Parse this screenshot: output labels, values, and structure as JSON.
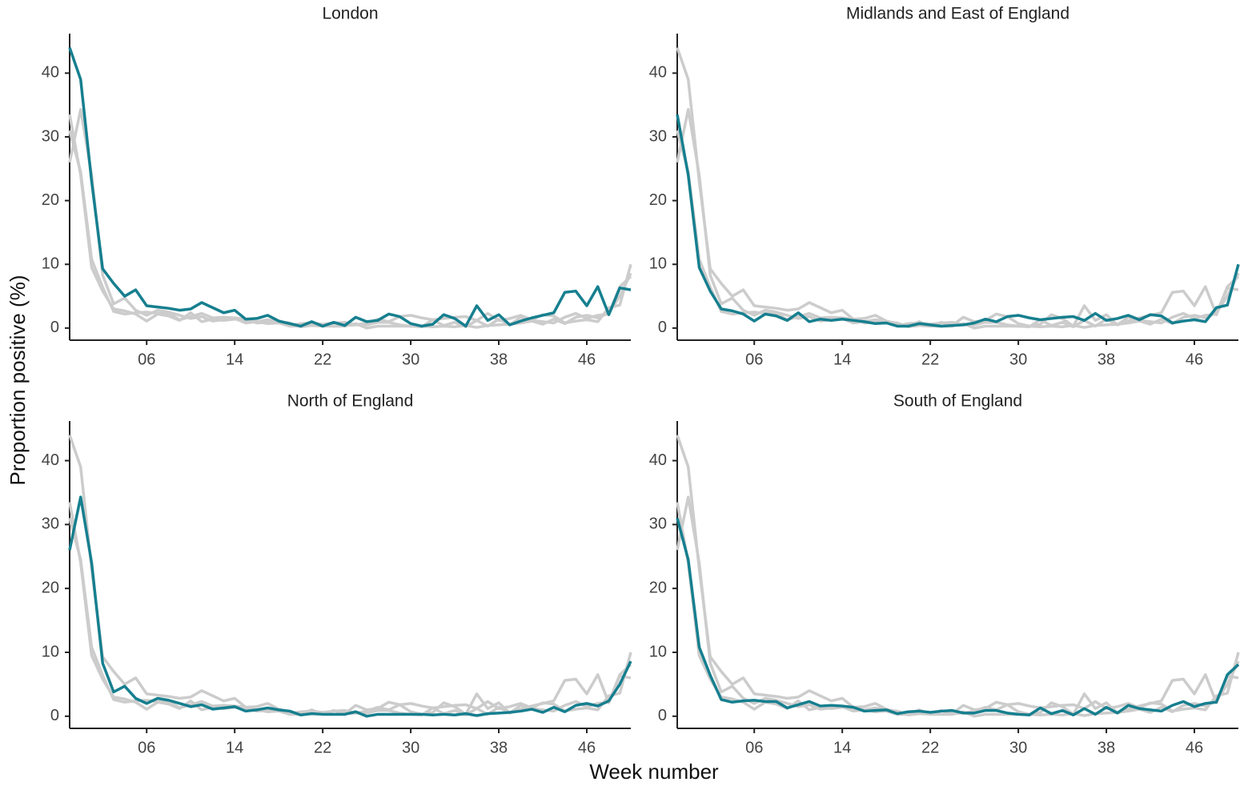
{
  "chart_data": {
    "type": "line",
    "x_label": "Week number",
    "y_label": "Proportion positive (%)",
    "categories": [
      null,
      null,
      null,
      null,
      null,
      null,
      null,
      "06",
      null,
      null,
      null,
      null,
      null,
      null,
      null,
      "14",
      null,
      null,
      null,
      null,
      null,
      null,
      null,
      "22",
      null,
      null,
      null,
      null,
      null,
      null,
      null,
      "30",
      null,
      null,
      null,
      null,
      null,
      null,
      null,
      "38",
      null,
      null,
      null,
      null,
      null,
      null,
      null,
      "46",
      null,
      null,
      null,
      null
    ],
    "ylim": [
      -1.9,
      46.2
    ],
    "yticks": [
      0,
      10,
      20,
      30,
      40
    ],
    "highlight_color": "#167f8f",
    "background_color": "#cccccc",
    "series": [
      {
        "name": "London",
        "values": [
          44,
          39,
          23,
          9.3,
          7,
          5,
          6,
          3.5,
          3.3,
          3.1,
          2.8,
          3,
          4,
          3.2,
          2.4,
          2.8,
          1.4,
          1.5,
          2,
          1.1,
          0.7,
          0.3,
          1,
          0.3,
          0.9,
          0.4,
          1.7,
          1,
          1.2,
          2.2,
          1.8,
          0.7,
          0.3,
          0.6,
          2.1,
          1.5,
          0.3,
          3.5,
          1.2,
          2.1,
          0.5,
          1.1,
          1.6,
          2,
          2.4,
          5.6,
          5.8,
          3.5,
          6.5,
          2.1,
          6.3,
          6
        ]
      },
      {
        "name": "Midlands and East of England",
        "values": [
          33.5,
          24,
          9.5,
          5.8,
          3,
          2.7,
          2.2,
          1.1,
          2.2,
          1.9,
          1.2,
          2.4,
          1,
          1.4,
          1.2,
          1.4,
          1.2,
          1,
          0.7,
          0.8,
          0.3,
          0.3,
          0.7,
          0.5,
          0.3,
          0.4,
          0.5,
          0.8,
          1.4,
          1,
          1.8,
          2,
          1.6,
          1.3,
          1.5,
          1.7,
          1.8,
          1.2,
          2.3,
          1.2,
          1.5,
          2,
          1.3,
          2.1,
          1.9,
          0.8,
          1.1,
          1.3,
          1,
          3.2,
          3.6,
          10
        ]
      },
      {
        "name": "North of England",
        "values": [
          26,
          34.3,
          24,
          8.3,
          3.8,
          4.7,
          2.8,
          2,
          2.8,
          2.5,
          2,
          1.5,
          1.8,
          1.1,
          1.3,
          1.5,
          0.8,
          1,
          1.3,
          1,
          0.8,
          0.2,
          0.4,
          0.3,
          0.3,
          0.3,
          0.7,
          0,
          0.3,
          0.3,
          0.3,
          0.3,
          0.3,
          0.2,
          0.3,
          0.2,
          0.4,
          0.1,
          0.4,
          0.5,
          0.6,
          0.8,
          1.1,
          0.6,
          1.4,
          0.7,
          1.7,
          2,
          1.6,
          2.4,
          5,
          8.6
        ]
      },
      {
        "name": "South of England",
        "values": [
          31,
          24.5,
          10.8,
          6.4,
          2.6,
          2.2,
          2.4,
          2.5,
          2.3,
          2.3,
          1.3,
          1.8,
          2.3,
          1.6,
          1.7,
          1.6,
          1.4,
          0.8,
          0.9,
          1,
          0.4,
          0.7,
          0.8,
          0.6,
          0.8,
          0.9,
          0.5,
          0.5,
          0.9,
          0.9,
          0.5,
          0.3,
          0.2,
          1.3,
          0.4,
          0.9,
          0.2,
          1.2,
          0.3,
          1.4,
          0.5,
          1.7,
          1.2,
          1,
          0.8,
          1.7,
          2.3,
          1.5,
          2,
          2.2,
          6.5,
          8.1
        ]
      }
    ]
  }
}
